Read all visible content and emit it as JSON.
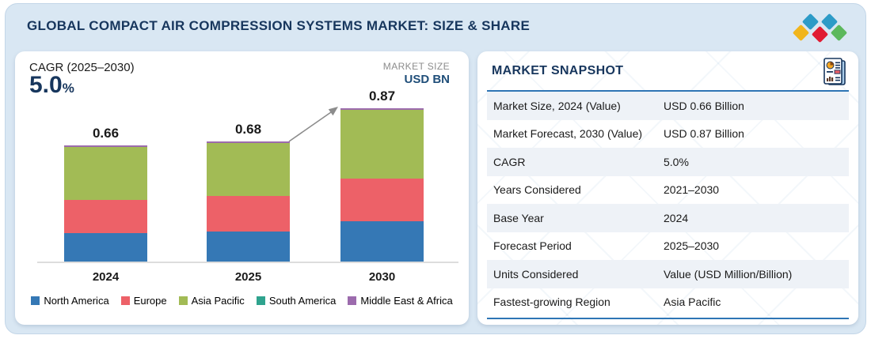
{
  "header": {
    "title": "GLOBAL COMPACT AIR COMPRESSION SYSTEMS MARKET: SIZE & SHARE"
  },
  "logo": {
    "diamond_colors": [
      "#2d9bc7",
      "#2d9bc7",
      "#f1b51c",
      "#e11b32",
      "#5cb85c"
    ]
  },
  "chart_panel": {
    "cagr_label": "CAGR (2025–2030)",
    "cagr_value": "5.0",
    "cagr_unit": "%",
    "market_size_label": "MARKET SIZE",
    "market_size_unit": "USD BN"
  },
  "chart_data": {
    "type": "bar",
    "stacked": true,
    "categories": [
      "2024",
      "2025",
      "2030"
    ],
    "series": [
      {
        "name": "North America",
        "color": "#3578b5",
        "values": [
          0.16,
          0.17,
          0.23
        ]
      },
      {
        "name": "Europe",
        "color": "#ed6168",
        "values": [
          0.19,
          0.2,
          0.24
        ]
      },
      {
        "name": "Asia Pacific",
        "color": "#a2bb55",
        "values": [
          0.3,
          0.3,
          0.39
        ]
      },
      {
        "name": "South America",
        "color": "#2fa38e",
        "values": [
          0.0,
          0.0,
          0.0
        ]
      },
      {
        "name": "Middle East & Africa",
        "color": "#9c6bad",
        "values": [
          0.01,
          0.01,
          0.01
        ]
      }
    ],
    "totals": [
      0.66,
      0.68,
      0.87
    ],
    "total_labels": [
      "0.66",
      "0.68",
      "0.87"
    ],
    "title": "",
    "xlabel": "",
    "ylabel": "Market Size (USD BN)",
    "ylim": [
      0,
      1.0
    ],
    "grid": false,
    "legend_position": "bottom",
    "annotations": [
      "growth arrow from 2025 bar top to 2030 bar top"
    ]
  },
  "snapshot": {
    "title": "MARKET SNAPSHOT",
    "rows": [
      {
        "label": "Market Size, 2024 (Value)",
        "value": "USD 0.66 Billion"
      },
      {
        "label": "Market Forecast, 2030 (Value)",
        "value": "USD 0.87 Billion"
      },
      {
        "label": "CAGR",
        "value": "5.0%"
      },
      {
        "label": "Years Considered",
        "value": "2021–2030"
      },
      {
        "label": "Base Year",
        "value": "2024"
      },
      {
        "label": "Forecast Period",
        "value": "2025–2030"
      },
      {
        "label": "Units Considered",
        "value": "Value (USD Million/Billion)"
      },
      {
        "label": "Fastest-growing Region",
        "value": "Asia Pacific"
      }
    ]
  },
  "colors": {
    "frame_bg": "#d9e7f3",
    "navy": "#17365d",
    "value_navy": "#1f4e79",
    "divider_blue": "#2e75b5",
    "row_alt_bg": "#eef2f7",
    "axis_gray": "#dddddd",
    "arrow_gray": "#8c8c8c"
  }
}
